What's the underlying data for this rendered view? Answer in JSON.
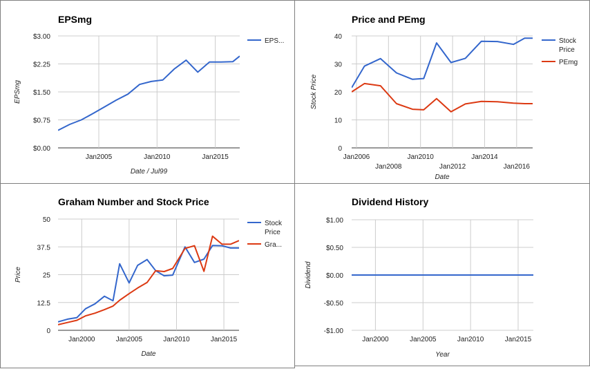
{
  "chart_data": [
    {
      "id": "eps",
      "type": "line",
      "title": "EPSmg",
      "xlabel": "Date / Jul99",
      "ylabel": "EPSmg",
      "x_tick_labels": [
        "Jan2005",
        "Jan2010",
        "Jan2015"
      ],
      "y_tick_labels": [
        "$3.00",
        "$2.25",
        "$1.50",
        "$0.75",
        "$0.00"
      ],
      "xlim": [
        2001.5,
        2017.1
      ],
      "ylim": [
        0,
        3
      ],
      "grid": true,
      "legend_position": "right",
      "series": [
        {
          "name": "EPS...",
          "color": "#3366cc",
          "x": [
            2001.5,
            2002.5,
            2003.5,
            2004.5,
            2005.5,
            2006.5,
            2007.5,
            2008.5,
            2009.5,
            2010.5,
            2011.5,
            2012.5,
            2013.5,
            2014.5,
            2015.5,
            2016.5,
            2017.1
          ],
          "y": [
            0.47,
            0.63,
            0.75,
            0.92,
            1.1,
            1.28,
            1.44,
            1.7,
            1.78,
            1.82,
            2.12,
            2.35,
            2.03,
            2.3,
            2.3,
            2.31,
            2.46
          ]
        }
      ]
    },
    {
      "id": "price-pe",
      "type": "line",
      "title": "Price and PEmg",
      "xlabel": "Date",
      "ylabel": "Stock Price",
      "x_tick_labels": [
        "Jan2006",
        "Jan2008",
        "Jan2010",
        "Jan2012",
        "Jan2014",
        "Jan2016"
      ],
      "y_tick_labels": [
        "40",
        "30",
        "20",
        "10",
        "0"
      ],
      "xlim": [
        2005.7,
        2017.0
      ],
      "ylim": [
        0,
        40
      ],
      "grid": true,
      "legend_position": "right",
      "series": [
        {
          "name": "Stock Price",
          "color": "#3366cc",
          "x": [
            2005.7,
            2006.5,
            2007.5,
            2008.5,
            2009.5,
            2010.2,
            2011.0,
            2011.9,
            2012.8,
            2013.8,
            2014.8,
            2015.8,
            2016.5,
            2017.0
          ],
          "y": [
            21.5,
            29.2,
            31.9,
            26.8,
            24.5,
            24.8,
            37.5,
            30.5,
            32.0,
            38.1,
            38.0,
            37.0,
            39.2,
            39.2
          ]
        },
        {
          "name": "PEmg",
          "color": "#dc3912",
          "x": [
            2005.7,
            2006.5,
            2007.5,
            2008.5,
            2009.5,
            2010.2,
            2011.0,
            2011.9,
            2012.8,
            2013.8,
            2014.8,
            2015.8,
            2016.5,
            2017.0
          ],
          "y": [
            20.0,
            23.0,
            22.2,
            15.8,
            13.8,
            13.6,
            17.6,
            12.9,
            15.7,
            16.6,
            16.5,
            16.0,
            15.8,
            15.8
          ]
        }
      ]
    },
    {
      "id": "graham",
      "type": "line",
      "title": "Graham Number and Stock Price",
      "xlabel": "Date",
      "ylabel": "Price",
      "x_tick_labels": [
        "Jan2000",
        "Jan2005",
        "Jan2010",
        "Jan2015"
      ],
      "y_tick_labels": [
        "50",
        "37.5",
        "25",
        "12.5",
        "0"
      ],
      "xlim": [
        1997.5,
        2016.6
      ],
      "ylim": [
        0,
        50
      ],
      "grid": true,
      "legend_position": "right",
      "series": [
        {
          "name": "Stock Price",
          "color": "#3366cc",
          "x": [
            1997.5,
            1998.5,
            1999.5,
            2000.4,
            2001.4,
            2002.4,
            2003.3,
            2004.0,
            2005.0,
            2005.9,
            2006.9,
            2007.8,
            2008.7,
            2009.6,
            2010.9,
            2011.9,
            2012.9,
            2013.8,
            2014.8,
            2015.7,
            2016.6
          ],
          "y": [
            3.8,
            5.0,
            5.7,
            9.7,
            11.9,
            15.3,
            13.3,
            29.9,
            21.3,
            29.2,
            31.8,
            26.8,
            24.5,
            24.8,
            37.5,
            30.5,
            32.0,
            38.1,
            38.0,
            37.0,
            37.0
          ]
        },
        {
          "name": "Gra...",
          "color": "#dc3912",
          "x": [
            1997.5,
            1998.5,
            1999.5,
            2000.4,
            2001.4,
            2002.4,
            2003.3,
            2004.0,
            2005.0,
            2005.9,
            2006.9,
            2007.8,
            2008.7,
            2009.6,
            2010.9,
            2011.9,
            2012.9,
            2013.8,
            2014.8,
            2015.7,
            2016.6
          ],
          "y": [
            2.5,
            3.5,
            4.5,
            6.5,
            7.7,
            9.3,
            10.9,
            13.5,
            16.5,
            19.0,
            21.5,
            26.8,
            26.4,
            27.8,
            36.8,
            38.0,
            26.5,
            42.3,
            38.7,
            38.7,
            40.3
          ]
        }
      ]
    },
    {
      "id": "dividend",
      "type": "line",
      "title": "Dividend History",
      "xlabel": "Year",
      "ylabel": "Dividend",
      "x_tick_labels": [
        "Jan2000",
        "Jan2005",
        "Jan2010",
        "Jan2015"
      ],
      "y_tick_labels": [
        "$1.00",
        "$0.50",
        "$0.00",
        "-$0.50",
        "-$1.00"
      ],
      "xlim": [
        1997.5,
        2016.6
      ],
      "ylim": [
        -1,
        1
      ],
      "grid": true,
      "series": [
        {
          "name": "",
          "color": "#3366cc",
          "x": [
            1997.5,
            2016.6
          ],
          "y": [
            0,
            0
          ]
        }
      ]
    }
  ]
}
